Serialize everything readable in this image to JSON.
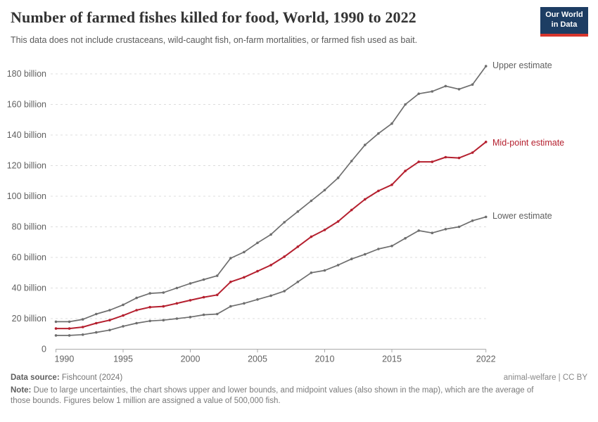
{
  "header": {
    "title": "Number of farmed fishes killed for food, World, 1990 to 2022",
    "subtitle": "This data does not include crustaceans, wild-caught fish, on-farm mortalities, or farmed fish used as bait.",
    "logo": {
      "line1": "Our World",
      "line2": "in Data",
      "bg_color": "#1d3d63",
      "accent_color": "#d7352c"
    }
  },
  "chart_data": {
    "type": "line",
    "title": "Number of farmed fishes killed for food, World, 1990 to 2022",
    "xlabel": "",
    "ylabel": "",
    "unit": "billion fish",
    "grid": "horizontal-dashed",
    "legend_position": "end-of-line-labels",
    "ylim": [
      0,
      190
    ],
    "x": [
      1990,
      1991,
      1992,
      1993,
      1994,
      1995,
      1996,
      1997,
      1998,
      1999,
      2000,
      2001,
      2002,
      2003,
      2004,
      2005,
      2006,
      2007,
      2008,
      2009,
      2010,
      2011,
      2012,
      2013,
      2014,
      2015,
      2016,
      2017,
      2018,
      2019,
      2020,
      2021,
      2022
    ],
    "xticks": [
      1990,
      1995,
      2000,
      2005,
      2010,
      2015,
      2022
    ],
    "yticks": [
      {
        "value": 0,
        "label": "0"
      },
      {
        "value": 20,
        "label": "20 billion"
      },
      {
        "value": 40,
        "label": "40 billion"
      },
      {
        "value": 60,
        "label": "60 billion"
      },
      {
        "value": 80,
        "label": "80 billion"
      },
      {
        "value": 100,
        "label": "100 billion"
      },
      {
        "value": 120,
        "label": "120 billion"
      },
      {
        "value": 140,
        "label": "140 billion"
      },
      {
        "value": 160,
        "label": "160 billion"
      },
      {
        "value": 180,
        "label": "180 billion"
      }
    ],
    "series": [
      {
        "name": "Upper estimate",
        "color": "#6e6e6e",
        "label_color": "#5f5f5f",
        "values": [
          18,
          18,
          19.5,
          23,
          25.5,
          29,
          33.5,
          36.5,
          37,
          40,
          43,
          45.5,
          48,
          59.5,
          63.5,
          69.5,
          75,
          83,
          90,
          97,
          104,
          112,
          123,
          133.5,
          141,
          147.5,
          160,
          167,
          168.5,
          172,
          170,
          173,
          185
        ]
      },
      {
        "name": "Mid-point estimate",
        "color": "#b5202f",
        "label_color": "#b5202f",
        "values": [
          13.5,
          13.5,
          14.5,
          17,
          19,
          22,
          25.5,
          27.5,
          28,
          30,
          32,
          34,
          35.5,
          44,
          47,
          51,
          55,
          60.5,
          67,
          73.5,
          78,
          83.5,
          91,
          98,
          103.5,
          107.5,
          116.5,
          122.5,
          122.5,
          125.5,
          125,
          128.5,
          135.5
        ]
      },
      {
        "name": "Lower estimate",
        "color": "#6e6e6e",
        "label_color": "#5f5f5f",
        "values": [
          9,
          9,
          9.5,
          11,
          12.5,
          15,
          17,
          18.5,
          19,
          20,
          21,
          22.5,
          23,
          28,
          30,
          32.5,
          35,
          38,
          44,
          50,
          51.5,
          55,
          59,
          62,
          65.5,
          67.5,
          72.5,
          77.5,
          76,
          78.5,
          80,
          84,
          86.5
        ]
      }
    ]
  },
  "footer": {
    "source_label": "Data source:",
    "source_value": " Fishcount (2024)",
    "license": "animal-welfare | CC BY",
    "note_label": "Note:",
    "note_text": " Due to large uncertainties, the chart shows upper and lower bounds, and midpoint values (also shown in the map), which are the average of those bounds. Figures below 1 million are assigned a value of 500,000 fish."
  }
}
